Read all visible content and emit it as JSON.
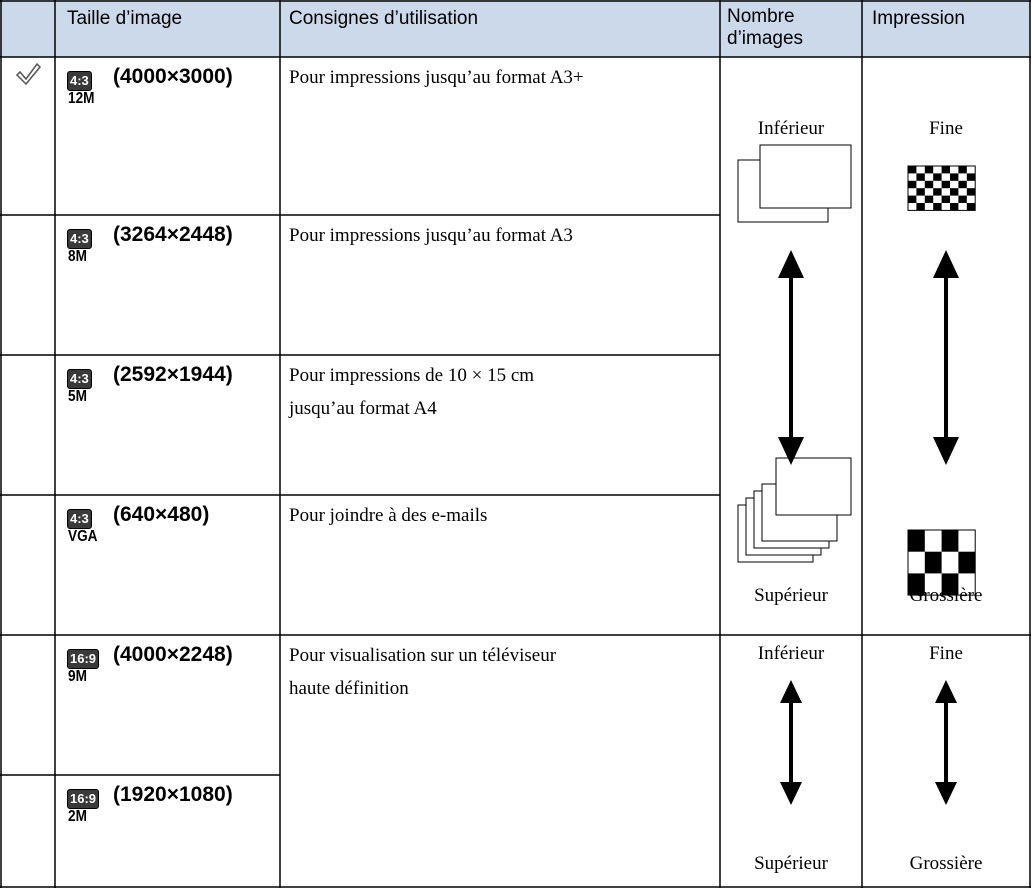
{
  "table": {
    "header": [
      "Taille d’image",
      "Consignes d’utilisation",
      "Nombre d’images",
      "Impression"
    ],
    "rows": [
      {
        "aspect": "4:3",
        "megapixels": "12M",
        "size": "(4000×3000)",
        "usage": [
          "Pour impressions jusqu’au format A3+"
        ]
      },
      {
        "aspect": "4:3",
        "megapixels": "8M",
        "size": "(3264×2448)",
        "usage": [
          "Pour impressions jusqu’au format A3"
        ]
      },
      {
        "aspect": "4:3",
        "megapixels": "5M",
        "size": "(2592×1944)",
        "usage": [
          "Pour impressions de 10 × 15 cm",
          "jusqu’au format A4"
        ]
      },
      {
        "aspect": "4:3",
        "megapixels": "VGA",
        "size": "(640×480)",
        "usage": [
          "Pour joindre à des e-mails"
        ]
      },
      {
        "aspect": "16:9",
        "megapixels": "9M",
        "size": "(4000×2248)",
        "usage": [
          "Pour visualisation sur un téléviseur",
          "haute définition"
        ]
      },
      {
        "aspect": "16:9",
        "megapixels": "2M",
        "size": "(1920×1080)"
      }
    ],
    "groups": [
      {
        "count_low": "Inférieur",
        "count_high": "Supérieur",
        "quality_high": "Fine",
        "quality_low": "Grossière"
      },
      {
        "count_low": "Inférieur",
        "count_high": "Supérieur",
        "quality_high": "Fine",
        "quality_low": "Grossière"
      }
    ]
  }
}
